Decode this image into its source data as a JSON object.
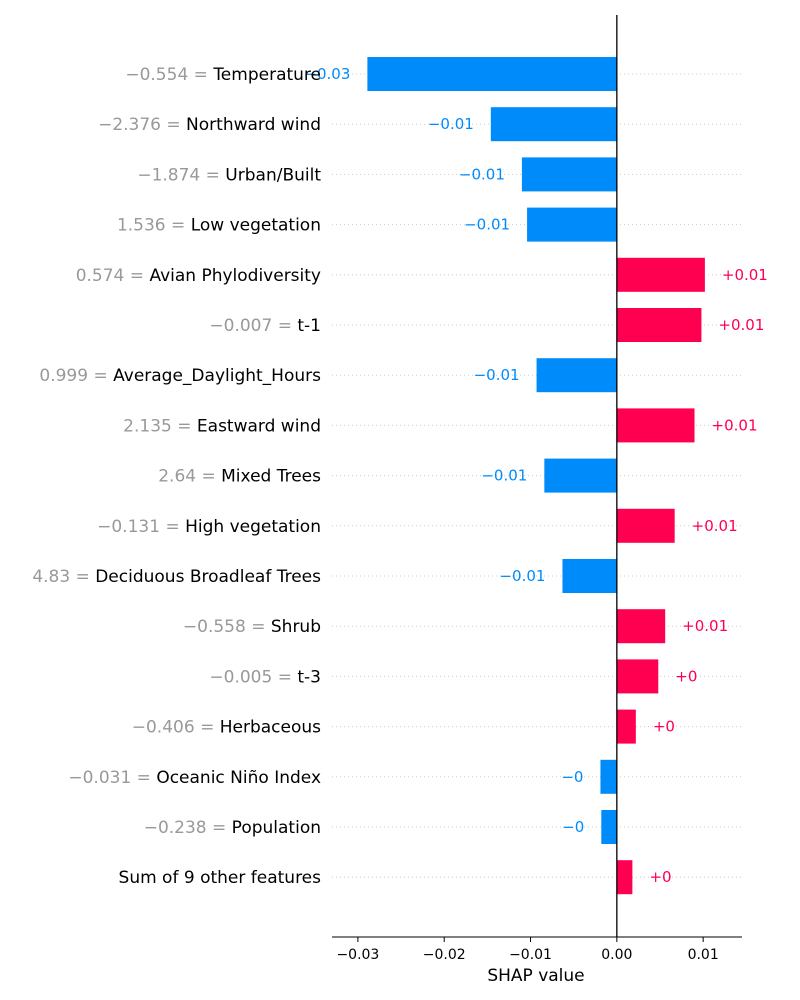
{
  "chart_data": {
    "type": "bar",
    "orientation": "horizontal",
    "xlabel": "SHAP value",
    "xlim": [
      -0.033,
      0.0145
    ],
    "xticks": [
      "−0.03",
      "−0.02",
      "−0.01",
      "0.00",
      "0.01"
    ],
    "xtick_values": [
      -0.03,
      -0.02,
      -0.01,
      0.0,
      0.01
    ],
    "grid": "dotted horizontal guide lines per row",
    "colors": {
      "positive": "#ff0051",
      "negative": "#008bfb",
      "feature_value": "#999999",
      "label": "#000000"
    },
    "features": [
      {
        "value": "−0.554",
        "name": "Temperature",
        "shap": -0.0289,
        "label": "−0.03"
      },
      {
        "value": "−2.376",
        "name": "Northward wind",
        "shap": -0.0146,
        "label": "−0.01"
      },
      {
        "value": "−1.874",
        "name": "Urban/Built",
        "shap": -0.011,
        "label": "−0.01"
      },
      {
        "value": "1.536",
        "name": "Low vegetation",
        "shap": -0.0104,
        "label": "−0.01"
      },
      {
        "value": "0.574",
        "name": "Avian Phylodiversity",
        "shap": 0.0102,
        "label": "+0.01"
      },
      {
        "value": "−0.007",
        "name": "t-1",
        "shap": 0.0098,
        "label": "+0.01"
      },
      {
        "value": "0.999",
        "name": "Average_Daylight_Hours",
        "shap": -0.0093,
        "label": "−0.01"
      },
      {
        "value": "2.135",
        "name": "Eastward wind",
        "shap": 0.009,
        "label": "+0.01"
      },
      {
        "value": "2.64",
        "name": "Mixed Trees",
        "shap": -0.0084,
        "label": "−0.01"
      },
      {
        "value": "−0.131",
        "name": "High vegetation",
        "shap": 0.0067,
        "label": "+0.01"
      },
      {
        "value": "4.83",
        "name": "Deciduous Broadleaf Trees",
        "shap": -0.0063,
        "label": "−0.01"
      },
      {
        "value": "−0.558",
        "name": "Shrub",
        "shap": 0.0056,
        "label": "+0.01"
      },
      {
        "value": "−0.005",
        "name": "t-3",
        "shap": 0.0048,
        "label": "+0"
      },
      {
        "value": "−0.406",
        "name": "Herbaceous",
        "shap": 0.0022,
        "label": "+0"
      },
      {
        "value": "−0.031",
        "name": "Oceanic Niño Index",
        "shap": -0.0019,
        "label": "−0"
      },
      {
        "value": "−0.238",
        "name": "Population",
        "shap": -0.0018,
        "label": "−0"
      },
      {
        "value": "",
        "name": "Sum of 9 other features",
        "shap": 0.0018,
        "label": "+0"
      }
    ]
  }
}
